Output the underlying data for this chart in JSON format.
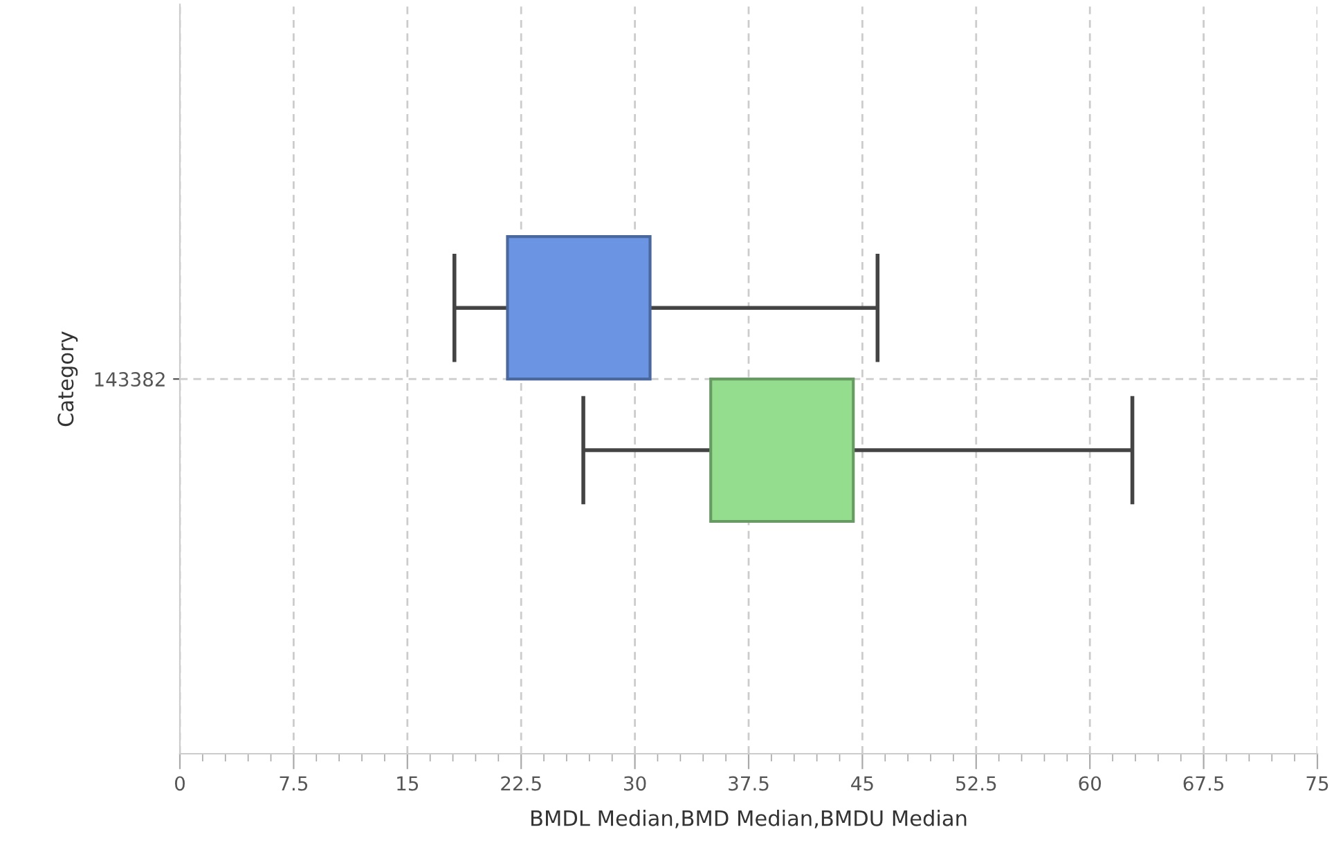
{
  "chart_data": {
    "type": "box",
    "orientation": "horizontal",
    "xlabel": "BMDL Median,BMD Median,BMDU Median",
    "ylabel": "Category",
    "categories": [
      "143382"
    ],
    "series": [
      {
        "color": "#6b95e2",
        "boxes": [
          {
            "low": 18.1,
            "q1": 21.6,
            "q3": 31.0,
            "high": 46.0
          }
        ]
      },
      {
        "color": "#95dd8e",
        "boxes": [
          {
            "low": 26.6,
            "q1": 35.0,
            "q3": 44.4,
            "high": 62.8
          }
        ]
      }
    ],
    "xlim": [
      0,
      75
    ],
    "xticks": [
      0,
      7.5,
      15,
      22.5,
      30,
      37.5,
      45,
      52.5,
      60,
      67.5,
      75
    ],
    "grid": true
  }
}
